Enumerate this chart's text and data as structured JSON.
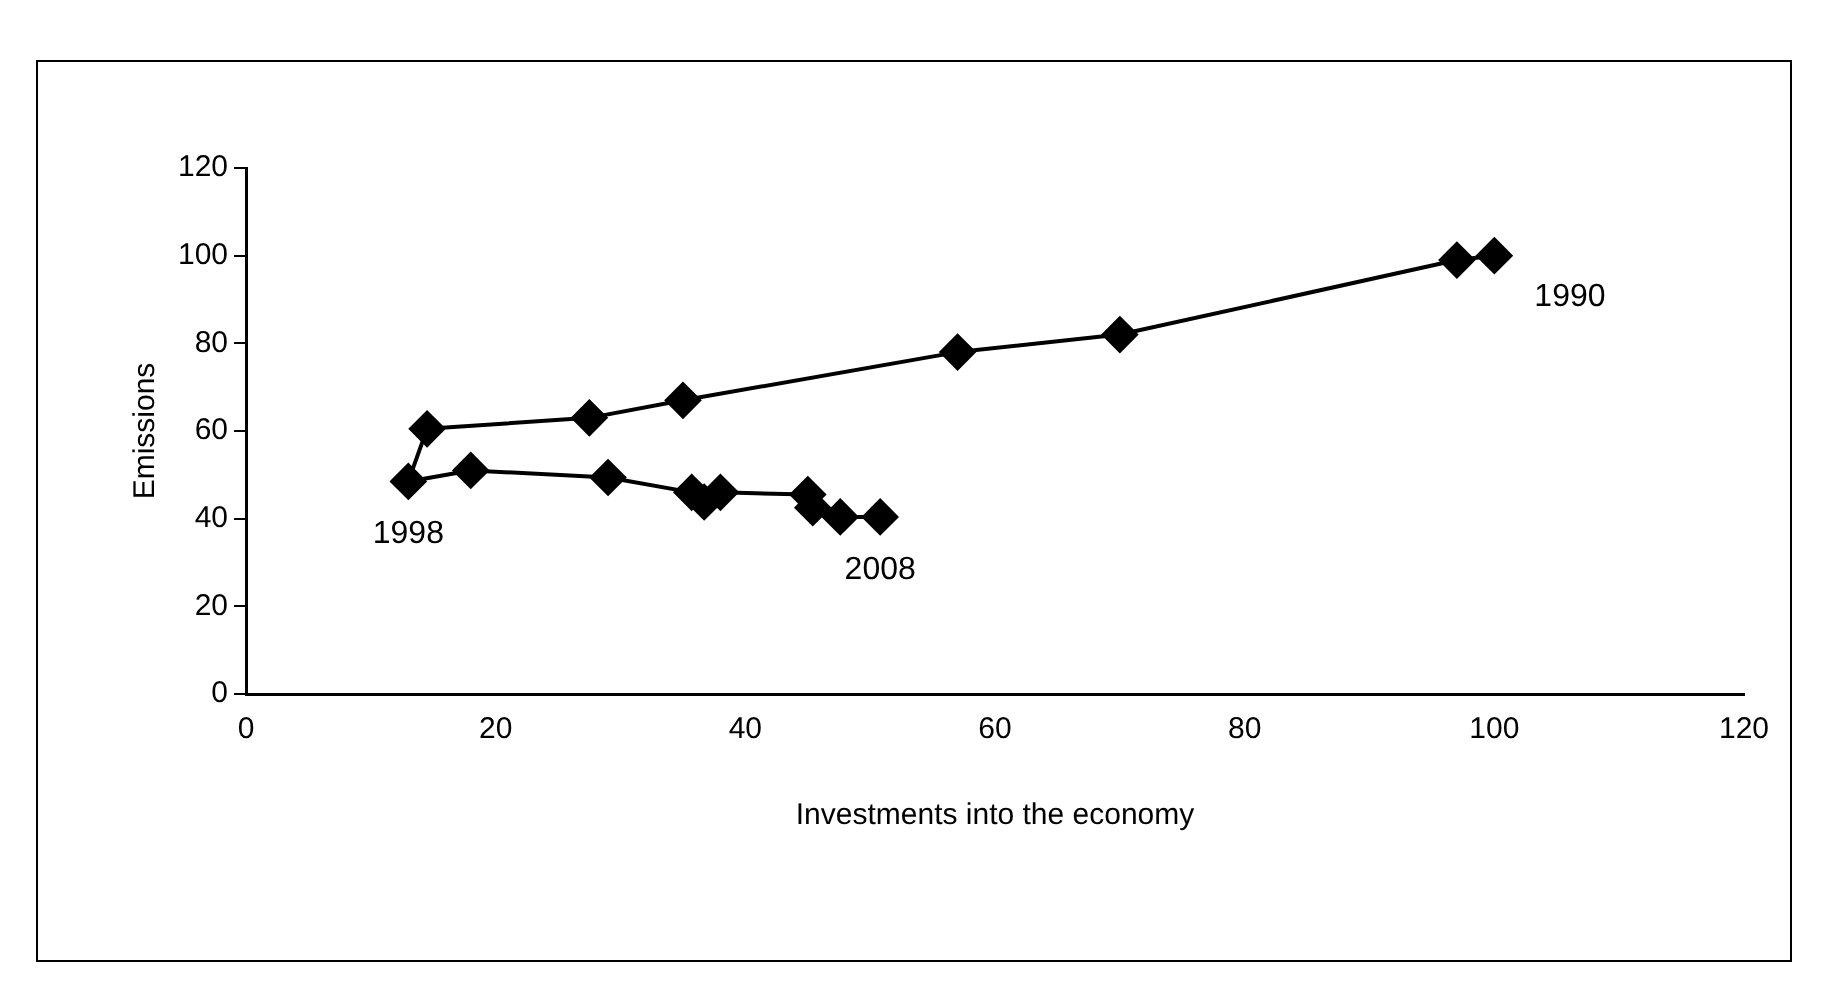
{
  "chart_data": {
    "type": "line",
    "xlabel": "Investments into the economy",
    "ylabel": "Emissions",
    "x": [
      100,
      97,
      70,
      57,
      35,
      27.5,
      14.5,
      13,
      18,
      29,
      35.7,
      36.7,
      38,
      45,
      45.4,
      47.6,
      50.8
    ],
    "values": [
      100,
      99,
      82,
      78,
      67,
      63,
      60.5,
      48.5,
      51,
      49.4,
      46,
      43.8,
      46,
      45.5,
      42.5,
      40.4,
      40.4
    ],
    "color": "#000000",
    "marker": "diamond",
    "line_style": "solid",
    "grid": false,
    "legend": false,
    "xlim": [
      0,
      120
    ],
    "xticks": [
      0,
      20,
      40,
      60,
      80,
      100,
      120
    ],
    "ylim": [
      0,
      120
    ],
    "yticks": [
      0,
      20,
      40,
      60,
      80,
      100,
      120
    ],
    "annotations": [
      {
        "text": "1990",
        "x": 100,
        "y": 100
      },
      {
        "text": "1998",
        "x": 13,
        "y": 48.5
      },
      {
        "text": "2008",
        "x": 50.8,
        "y": 40.4
      }
    ]
  }
}
